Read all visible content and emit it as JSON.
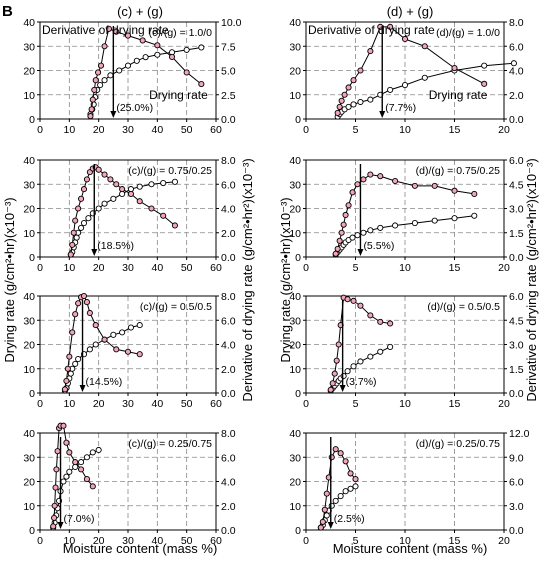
{
  "figure_label": "B",
  "column_titles": [
    "(c) + (g)",
    "(d) + (g)"
  ],
  "left_ylabel": "Drying rate (g/cm²•hr)(x10⁻³)",
  "right_ylabel": "Derivative of drying rate (g/cm²•hr²)(x10⁻³)",
  "xlabel": "Moisture content (mass %)",
  "colors": {
    "drying_marker": "#ffffff",
    "derivative_marker": "#f2a6b8",
    "line": "#000000",
    "grid": "#888888"
  },
  "chart_data": [
    {
      "type": "line",
      "panel": "(c)/(g) = 1.0/0",
      "ratio_label": "(c)/(g) = 1.0/0",
      "xlim": [
        0,
        60
      ],
      "xticks": [
        0,
        10,
        20,
        30,
        40,
        50,
        60
      ],
      "ylim": [
        0,
        40
      ],
      "yticks": [
        0,
        10,
        20,
        30,
        40
      ],
      "y2lim": [
        0,
        10
      ],
      "y2ticks": [
        "0.0",
        "2.5",
        "5.0",
        "7.5",
        "10.0"
      ],
      "critical_x": 25,
      "critical_label": "(25.0%)",
      "annotations": [
        "Derivative of drying rate",
        "Drying rate"
      ],
      "series": [
        {
          "name": "Drying rate",
          "axis": "left",
          "x": [
            17.2,
            17.8,
            18.3,
            18.8,
            19.5,
            20.5,
            22,
            24,
            27,
            30,
            33,
            36,
            40,
            45,
            50,
            55
          ],
          "y": [
            2,
            4,
            6,
            9,
            12,
            14,
            16,
            18,
            20,
            22,
            24,
            25.5,
            26.5,
            27.5,
            28.5,
            29.5
          ]
        },
        {
          "name": "Derivative of drying rate",
          "axis": "right",
          "x": [
            17.2,
            17.6,
            18,
            18.5,
            19,
            19.8,
            20.8,
            22,
            23.5,
            26,
            30,
            35,
            40,
            45,
            50,
            55
          ],
          "y": [
            0.3,
            1,
            2,
            3,
            4,
            4.8,
            5.5,
            7.5,
            9.3,
            9.0,
            8.6,
            8.1,
            7.6,
            6.4,
            4.8,
            3.6
          ]
        }
      ]
    },
    {
      "type": "line",
      "panel": "(c)/(g) = 0.75/0.25",
      "ratio_label": "(c)/(g) = 0.75/0.25",
      "xlim": [
        0,
        60
      ],
      "xticks": [
        0,
        10,
        20,
        30,
        40,
        50,
        60
      ],
      "ylim": [
        0,
        40
      ],
      "yticks": [
        0,
        10,
        20,
        30,
        40
      ],
      "y2lim": [
        0,
        8
      ],
      "y2ticks": [
        "0.0",
        "2.0",
        "4.0",
        "6.0",
        "8.0"
      ],
      "critical_x": 18.5,
      "critical_label": "(18.5%)",
      "series": [
        {
          "name": "Drying rate",
          "axis": "left",
          "x": [
            10.5,
            11,
            11.5,
            12,
            12.5,
            13,
            14,
            15,
            16.5,
            18,
            20,
            22,
            25,
            28,
            31,
            34,
            38,
            42,
            46
          ],
          "y": [
            1,
            2,
            4,
            6,
            8,
            10,
            12,
            14,
            16,
            18,
            20,
            22,
            24,
            26,
            28,
            29,
            30,
            30.5,
            31
          ]
        },
        {
          "name": "Derivative of drying rate",
          "axis": "right",
          "x": [
            10.5,
            11,
            11.5,
            12,
            13,
            14,
            15,
            16,
            17,
            18,
            19,
            20,
            22,
            24,
            26,
            28,
            31,
            34,
            38,
            42,
            46
          ],
          "y": [
            0.2,
            1,
            2,
            3,
            4,
            4.8,
            5.6,
            6.4,
            7.0,
            7.3,
            7.4,
            7.2,
            6.8,
            6.4,
            6.0,
            5.6,
            5.2,
            4.6,
            4.0,
            3.4,
            2.6
          ]
        }
      ]
    },
    {
      "type": "line",
      "panel": "(c)/(g) = 0.5/0.5",
      "ratio_label": "(c)/(g) = 0.5/0.5",
      "xlim": [
        0,
        60
      ],
      "xticks": [
        0,
        10,
        20,
        30,
        40,
        50,
        60
      ],
      "ylim": [
        0,
        40
      ],
      "yticks": [
        0,
        10,
        20,
        30,
        40
      ],
      "y2lim": [
        0,
        8
      ],
      "y2ticks": [
        "0.0",
        "2.0",
        "4.0",
        "6.0",
        "8.0"
      ],
      "critical_x": 14.5,
      "critical_label": "(14.5%)",
      "series": [
        {
          "name": "Drying rate",
          "axis": "left",
          "x": [
            8.5,
            9,
            9.5,
            10,
            10.5,
            11,
            12,
            13,
            15,
            17,
            19,
            22,
            25,
            28,
            31,
            34
          ],
          "y": [
            1,
            2,
            4,
            6,
            8,
            10,
            12,
            14,
            16,
            18,
            20,
            22,
            24,
            25,
            27,
            28
          ]
        },
        {
          "name": "Derivative of drying rate",
          "axis": "right",
          "x": [
            8.5,
            9,
            9.5,
            10,
            11,
            12,
            13,
            14,
            15,
            16,
            17,
            19,
            22,
            26,
            30,
            34
          ],
          "y": [
            0.3,
            1,
            2,
            3,
            5,
            6.5,
            7.4,
            7.9,
            8.0,
            7.5,
            6.6,
            5.6,
            4.4,
            3.6,
            3.4,
            3.2
          ]
        }
      ]
    },
    {
      "type": "line",
      "panel": "(c)/(g) = 0.25/0.75",
      "ratio_label": "(c)/(g) = 0.25/0.75",
      "xlim": [
        0,
        60
      ],
      "xticks": [
        0,
        10,
        20,
        30,
        40,
        50,
        60
      ],
      "ylim": [
        0,
        40
      ],
      "yticks": [
        0,
        10,
        20,
        30,
        40
      ],
      "y2lim": [
        0,
        8
      ],
      "y2ticks": [
        "0.0",
        "2.0",
        "4.0",
        "6.0",
        "8.0"
      ],
      "critical_x": 7.0,
      "critical_label": "(7.0%)",
      "series": [
        {
          "name": "Drying rate",
          "axis": "left",
          "x": [
            4.5,
            5,
            5.5,
            6,
            6.5,
            7,
            8,
            9,
            10,
            12,
            14,
            16,
            18,
            20
          ],
          "y": [
            1,
            3,
            6,
            9,
            12,
            16,
            20,
            22,
            24,
            26,
            28,
            30,
            32,
            33
          ]
        },
        {
          "name": "Derivative of drying rate",
          "axis": "right",
          "x": [
            4.5,
            4.8,
            5,
            5.3,
            5.6,
            6,
            6.5,
            7,
            8,
            9,
            10,
            12,
            14,
            16,
            18
          ],
          "y": [
            0.3,
            1,
            2,
            3.5,
            5,
            6.5,
            8.4,
            8.6,
            8.6,
            7.2,
            6.4,
            5.6,
            5.0,
            4.2,
            3.6
          ]
        }
      ]
    },
    {
      "type": "line",
      "panel": "(d)/(g) = 1.0/0",
      "ratio_label": "(d)/(g) = 1.0/0",
      "xlim": [
        0,
        20
      ],
      "xticks": [
        0,
        5,
        10,
        15,
        20
      ],
      "ylim": [
        0,
        40
      ],
      "yticks": [
        0,
        10,
        20,
        30,
        40
      ],
      "y2lim": [
        0,
        8
      ],
      "y2ticks": [
        "0.0",
        "2.0",
        "4.0",
        "6.0",
        "8.0"
      ],
      "critical_x": 7.7,
      "critical_label": "(7.7%)",
      "annotations": [
        "Derivative of drying rate",
        "Drying rate"
      ],
      "series": [
        {
          "name": "Drying rate",
          "axis": "left",
          "x": [
            3.2,
            3.4,
            3.6,
            3.9,
            4.3,
            4.8,
            5.5,
            6.5,
            7.5,
            8.5,
            10,
            12,
            15,
            18,
            21
          ],
          "y": [
            1,
            2,
            3,
            4,
            5,
            6,
            7,
            8,
            10,
            12,
            14,
            17,
            20,
            22,
            23
          ]
        },
        {
          "name": "Derivative of drying rate",
          "axis": "right",
          "x": [
            3.2,
            3.4,
            3.6,
            3.9,
            4.3,
            4.8,
            5.5,
            6.5,
            7.5,
            8.5,
            10,
            12,
            15,
            18
          ],
          "y": [
            0.5,
            1,
            1.5,
            2,
            2.6,
            3.2,
            4.0,
            5.6,
            7.6,
            7.6,
            6.6,
            6.0,
            4.2,
            2.9
          ]
        }
      ]
    },
    {
      "type": "line",
      "panel": "(d)/(g) = 0.75/0.25",
      "ratio_label": "(d)/(g) = 0.75/0.25",
      "xlim": [
        0,
        20
      ],
      "xticks": [
        0,
        5,
        10,
        15,
        20
      ],
      "ylim": [
        0,
        40
      ],
      "yticks": [
        0,
        10,
        20,
        30,
        40
      ],
      "y2lim": [
        0,
        6
      ],
      "y2ticks": [
        "0.0",
        "1.5",
        "3.0",
        "4.5",
        "6.0"
      ],
      "critical_x": 5.5,
      "critical_label": "(5.5%)",
      "series": [
        {
          "name": "Drying rate",
          "axis": "left",
          "x": [
            3.0,
            3.2,
            3.4,
            3.6,
            3.8,
            4.0,
            4.3,
            4.7,
            5.2,
            5.8,
            6.5,
            7.5,
            9,
            11,
            13,
            15,
            17
          ],
          "y": [
            1,
            2,
            3,
            4,
            5,
            6,
            7,
            8,
            9,
            10,
            11,
            12,
            13,
            14,
            15,
            16,
            17
          ]
        },
        {
          "name": "Derivative of drying rate",
          "axis": "right",
          "x": [
            3.0,
            3.2,
            3.4,
            3.6,
            3.8,
            4.0,
            4.3,
            4.7,
            5.2,
            5.8,
            6.5,
            7.5,
            9,
            11,
            13,
            15,
            17
          ],
          "y": [
            0.2,
            0.5,
            1,
            1.5,
            2,
            2.6,
            3.2,
            4.0,
            4.5,
            4.8,
            5.1,
            5.0,
            4.7,
            4.4,
            4.4,
            4.1,
            3.9
          ]
        }
      ]
    },
    {
      "type": "line",
      "panel": "(d)/(g) = 0.5/0.5",
      "ratio_label": "(d)/(g) = 0.5/0.5",
      "xlim": [
        0,
        20
      ],
      "xticks": [
        0,
        5,
        10,
        15,
        20
      ],
      "ylim": [
        0,
        40
      ],
      "yticks": [
        0,
        10,
        20,
        30,
        40
      ],
      "y2lim": [
        0,
        6
      ],
      "y2ticks": [
        "0.0",
        "1.5",
        "3.0",
        "4.5",
        "6.0"
      ],
      "critical_x": 3.7,
      "critical_label": "(3.7%)",
      "series": [
        {
          "name": "Drying rate",
          "axis": "left",
          "x": [
            2.5,
            2.7,
            2.9,
            3.1,
            3.3,
            3.5,
            3.8,
            4.2,
            4.8,
            5.5,
            6.5,
            7.5,
            8.5
          ],
          "y": [
            1,
            2,
            3,
            4,
            5,
            6,
            7,
            9,
            11,
            13,
            15,
            17,
            19
          ]
        },
        {
          "name": "Derivative of drying rate",
          "axis": "right",
          "x": [
            2.5,
            2.7,
            2.9,
            3.1,
            3.3,
            3.5,
            3.8,
            4.2,
            4.8,
            5.5,
            6.5,
            7.5,
            8.5
          ],
          "y": [
            0.2,
            0.6,
            1.2,
            2,
            3,
            4.2,
            5.9,
            5.8,
            5.7,
            5.4,
            4.8,
            4.4,
            4.3
          ]
        }
      ]
    },
    {
      "type": "line",
      "panel": "(d)/(g) = 0.25/0.75",
      "ratio_label": "(d)/(g) = 0.25/0.75",
      "xlim": [
        0,
        20
      ],
      "xticks": [
        0,
        5,
        10,
        15,
        20
      ],
      "ylim": [
        0,
        40
      ],
      "yticks": [
        0,
        10,
        20,
        30,
        40
      ],
      "y2lim": [
        0,
        12
      ],
      "y2ticks": [
        "0.0",
        "3.0",
        "6.0",
        "9.0",
        "12.0"
      ],
      "critical_x": 2.5,
      "critical_label": "(2.5%)",
      "series": [
        {
          "name": "Drying rate",
          "axis": "left",
          "x": [
            1.5,
            1.7,
            1.9,
            2.1,
            2.3,
            2.6,
            3.0,
            3.5,
            4.0,
            4.5,
            5.0
          ],
          "y": [
            1,
            2,
            4,
            6,
            8,
            10,
            12,
            14,
            16,
            17,
            18
          ]
        },
        {
          "name": "Derivative of drying rate",
          "axis": "right",
          "x": [
            1.5,
            1.7,
            1.9,
            2.1,
            2.3,
            2.6,
            3.0,
            3.5,
            4.0,
            4.5,
            5.0
          ],
          "y": [
            0.3,
            1,
            2.5,
            4.5,
            6.5,
            9.0,
            10.0,
            9.5,
            8.5,
            7.0,
            6.3
          ]
        }
      ]
    }
  ]
}
